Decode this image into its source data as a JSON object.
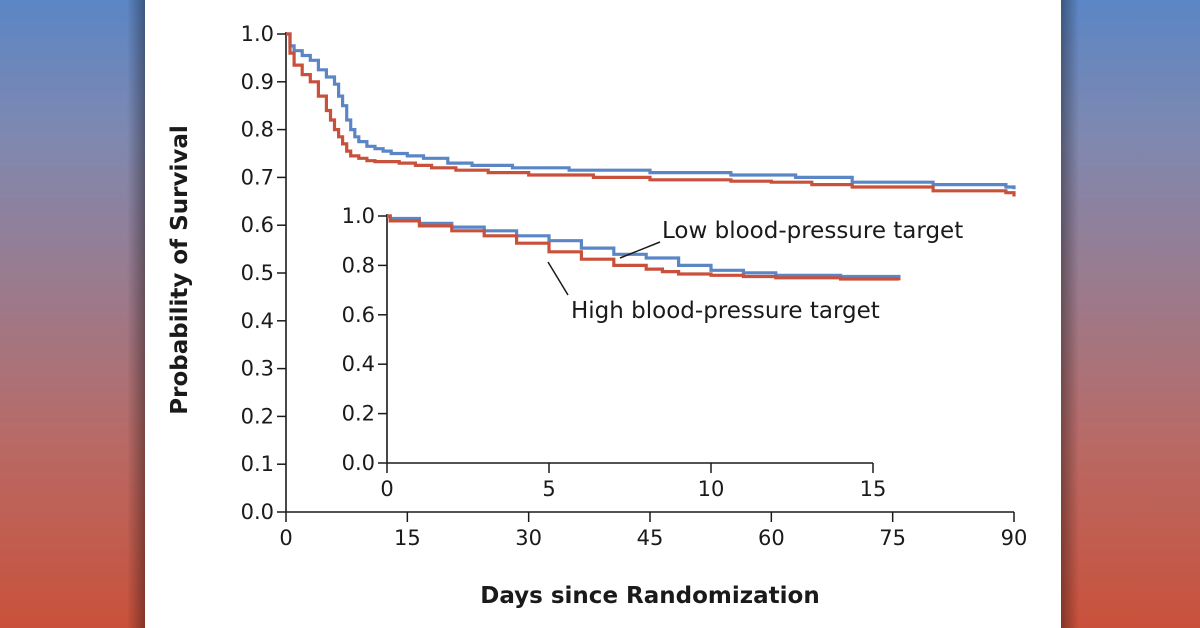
{
  "colors": {
    "low_target": "#5b86c5",
    "high_target": "#c9513b",
    "axis": "#1a1a1a",
    "background": "#ffffff"
  },
  "chart_data": [
    {
      "type": "line",
      "name": "main",
      "title": "",
      "xlabel": "Days since Randomization",
      "ylabel": "Probability of Survival",
      "xlim": [
        0,
        90
      ],
      "ylim": [
        0,
        1.0
      ],
      "xticks": [
        0,
        15,
        30,
        45,
        60,
        75,
        90
      ],
      "xtick_labels": [
        "0",
        "15",
        "30",
        "45",
        "60",
        "75",
        "90"
      ],
      "yticks": [
        0.0,
        0.1,
        0.2,
        0.3,
        0.4,
        0.5,
        0.6,
        0.7,
        0.8,
        0.9,
        1.0
      ],
      "ytick_labels": [
        "0.0",
        "0.1",
        "0.2",
        "0.3",
        "0.4",
        "0.5",
        "0.6",
        "0.7",
        "0.8",
        "0.9",
        "1.0"
      ],
      "series": [
        {
          "name": "Low blood-pressure target",
          "color": "#5b86c5",
          "x": [
            0,
            0.5,
            1,
            2,
            3,
            4,
            5,
            6,
            6.5,
            7,
            7.5,
            8,
            8.5,
            9,
            10,
            11,
            12,
            13,
            15,
            17,
            20,
            23,
            28,
            35,
            45,
            55,
            63,
            70,
            80,
            89,
            90
          ],
          "y": [
            1.0,
            0.975,
            0.965,
            0.955,
            0.945,
            0.925,
            0.91,
            0.895,
            0.87,
            0.85,
            0.82,
            0.8,
            0.785,
            0.775,
            0.765,
            0.76,
            0.755,
            0.75,
            0.745,
            0.74,
            0.73,
            0.725,
            0.72,
            0.715,
            0.71,
            0.705,
            0.7,
            0.69,
            0.685,
            0.68,
            0.675
          ]
        },
        {
          "name": "High blood-pressure target",
          "color": "#c9513b",
          "x": [
            0,
            0.5,
            1,
            2,
            3,
            4,
            5,
            5.5,
            6,
            6.5,
            7,
            7.5,
            8,
            9,
            10,
            11,
            14,
            16,
            18,
            21,
            25,
            30,
            38,
            45,
            55,
            60,
            65,
            70,
            80,
            89,
            90
          ],
          "y": [
            1.0,
            0.96,
            0.935,
            0.915,
            0.9,
            0.87,
            0.84,
            0.82,
            0.8,
            0.785,
            0.77,
            0.755,
            0.745,
            0.74,
            0.735,
            0.733,
            0.73,
            0.725,
            0.72,
            0.715,
            0.71,
            0.705,
            0.7,
            0.695,
            0.692,
            0.69,
            0.685,
            0.68,
            0.672,
            0.668,
            0.66
          ]
        }
      ]
    },
    {
      "type": "line",
      "name": "inset",
      "title": "",
      "xlabel": "",
      "ylabel": "",
      "xlim": [
        0,
        15
      ],
      "ylim": [
        0,
        1.0
      ],
      "xticks": [
        0,
        5,
        10,
        15
      ],
      "xtick_labels": [
        "0",
        "5",
        "10",
        "15"
      ],
      "yticks": [
        0.0,
        0.2,
        0.4,
        0.6,
        0.8,
        1.0
      ],
      "ytick_labels": [
        "0.0",
        "0.2",
        "0.4",
        "0.6",
        "0.8",
        "1.0"
      ],
      "series": [
        {
          "name": "Low blood-pressure target",
          "color": "#5b86c5",
          "x": [
            0,
            0.1,
            1,
            2,
            3,
            4,
            5,
            6,
            7,
            8,
            9,
            10,
            11,
            12,
            14,
            15.8
          ],
          "y": [
            1.0,
            0.99,
            0.97,
            0.955,
            0.94,
            0.92,
            0.9,
            0.87,
            0.845,
            0.83,
            0.8,
            0.78,
            0.77,
            0.76,
            0.755,
            0.75
          ]
        },
        {
          "name": "High blood-pressure target",
          "color": "#c9513b",
          "x": [
            0,
            0.1,
            1,
            2,
            3,
            4,
            5,
            6,
            7,
            8,
            8.5,
            9,
            10,
            11,
            12,
            14,
            15.8
          ],
          "y": [
            1.0,
            0.98,
            0.96,
            0.94,
            0.92,
            0.89,
            0.855,
            0.825,
            0.8,
            0.785,
            0.775,
            0.765,
            0.76,
            0.755,
            0.75,
            0.745,
            0.74
          ]
        }
      ]
    }
  ],
  "annotations": {
    "low_label": "Low blood-pressure target",
    "high_label": "High blood-pressure target"
  }
}
